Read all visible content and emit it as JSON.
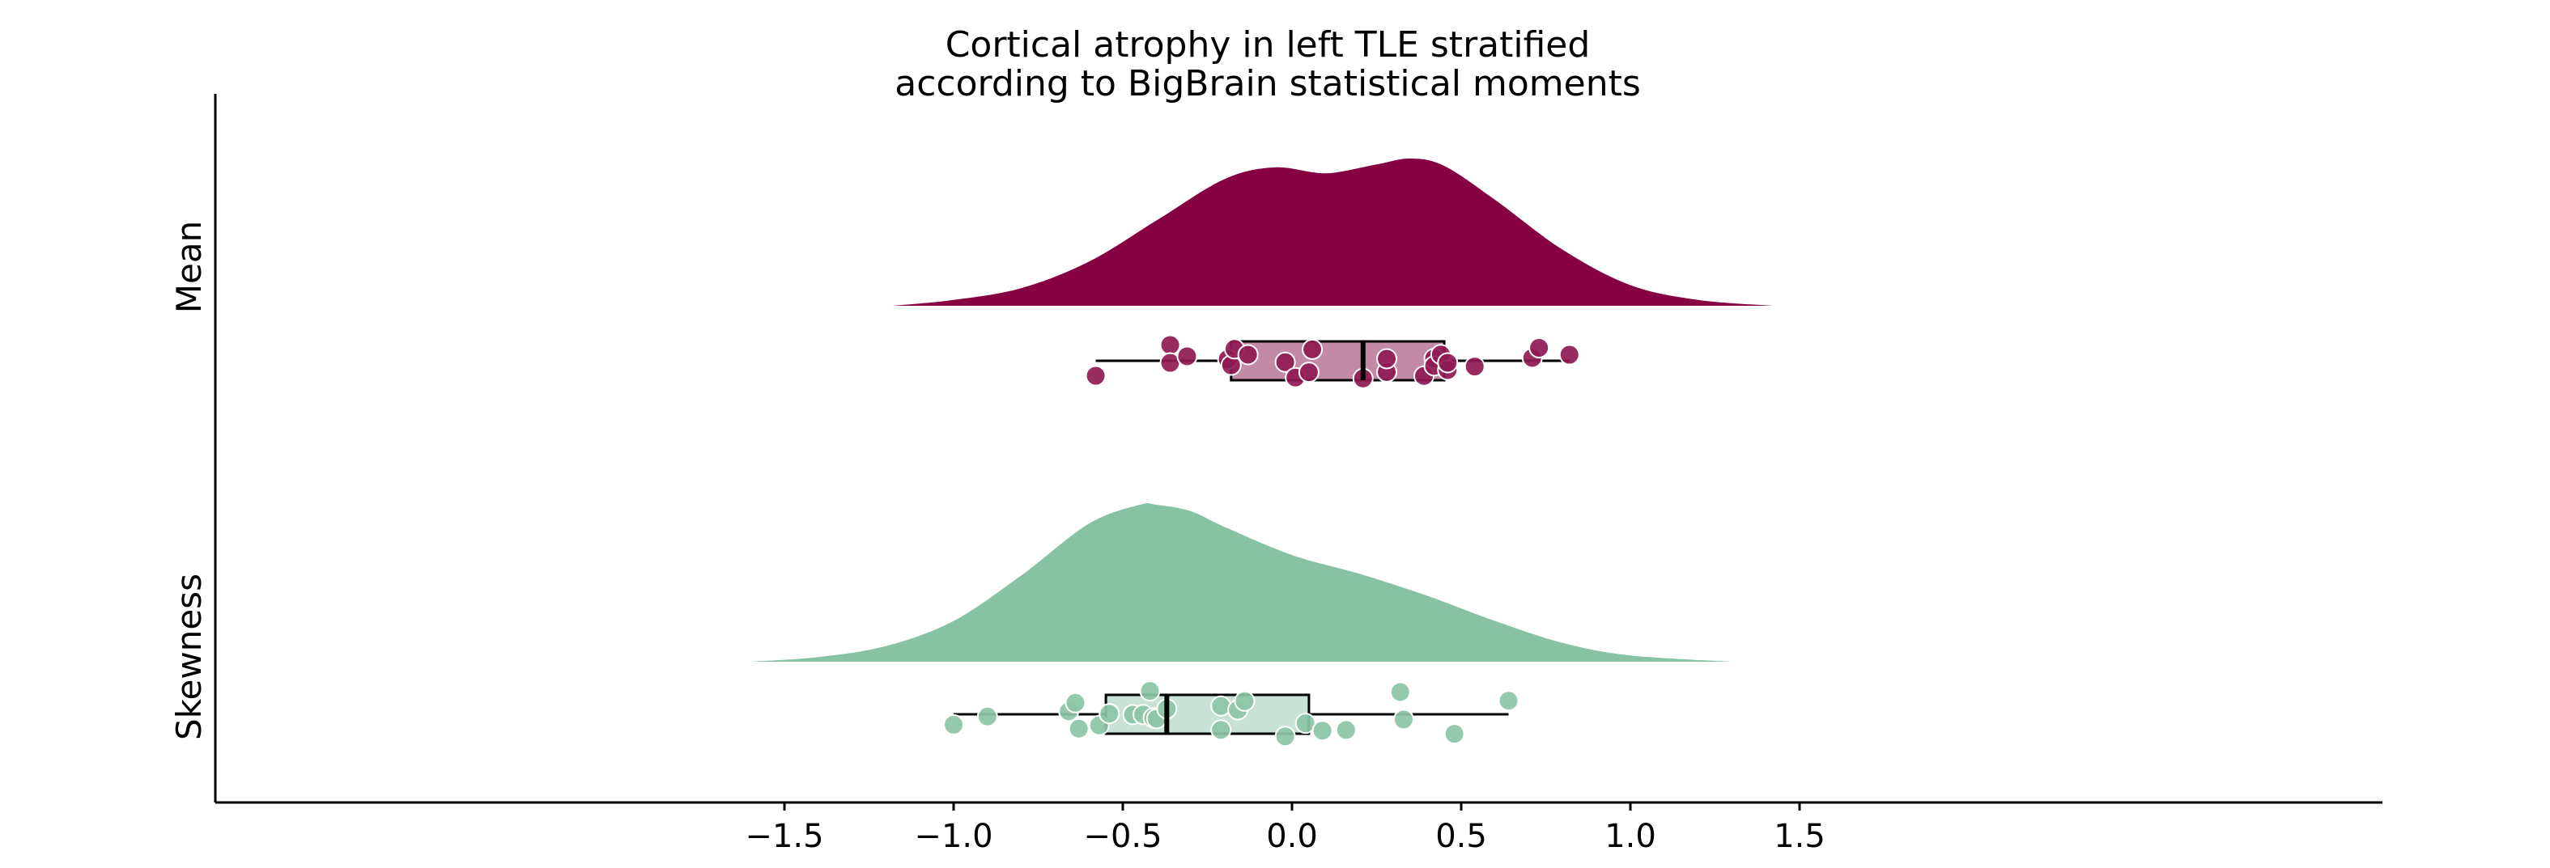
{
  "chart_data": {
    "type": "raincloud",
    "title_lines": [
      "Cortical atrophy in left TLE stratified",
      "according to BigBrain statistical moments"
    ],
    "xlabel": "",
    "ylabel": "",
    "xlim": [
      -1.6,
      1.6
    ],
    "x_ticks": [
      -1.5,
      -1.0,
      -0.5,
      0.0,
      0.5,
      1.0,
      1.5
    ],
    "x_tick_labels": [
      "−1.5",
      "−1.0",
      "−0.5",
      "0.0",
      "0.5",
      "1.0",
      "1.5"
    ],
    "grid": false,
    "series": [
      {
        "name": "Mean",
        "color": "#870042",
        "box_color": "#c38aa6",
        "point_color": "#8f1a52",
        "box": {
          "whisker_low": -0.58,
          "q1": -0.18,
          "median": 0.21,
          "q3": 0.45,
          "whisker_high": 0.82
        },
        "density": {
          "x": [
            -1.18,
            -1.0,
            -0.8,
            -0.6,
            -0.4,
            -0.2,
            -0.05,
            0.1,
            0.25,
            0.35,
            0.45,
            0.6,
            0.8,
            1.0,
            1.2,
            1.42
          ],
          "y": [
            0.0,
            0.04,
            0.12,
            0.3,
            0.58,
            0.86,
            0.94,
            0.9,
            0.96,
            1.0,
            0.95,
            0.72,
            0.38,
            0.14,
            0.04,
            0.0
          ]
        },
        "points": [
          -0.58,
          -0.36,
          -0.36,
          -0.31,
          -0.19,
          -0.18,
          -0.17,
          -0.13,
          -0.02,
          0.01,
          0.05,
          0.06,
          0.21,
          0.28,
          0.28,
          0.39,
          0.42,
          0.42,
          0.44,
          0.46,
          0.46,
          0.54,
          0.71,
          0.73,
          0.82
        ]
      },
      {
        "name": "Skewness",
        "color": "#88c2a5",
        "box_color": "#c8e3d6",
        "point_color": "#8cc4a7",
        "box": {
          "whisker_low": -1.0,
          "q1": -0.55,
          "median": -0.37,
          "q3": 0.05,
          "whisker_high": 0.64
        },
        "density": {
          "x": [
            -1.6,
            -1.4,
            -1.2,
            -1.0,
            -0.8,
            -0.6,
            -0.45,
            -0.4,
            -0.3,
            -0.2,
            0.0,
            0.2,
            0.4,
            0.6,
            0.8,
            1.0,
            1.3
          ],
          "y": [
            0.0,
            0.03,
            0.1,
            0.26,
            0.55,
            0.88,
            1.0,
            1.0,
            0.96,
            0.86,
            0.68,
            0.56,
            0.42,
            0.26,
            0.12,
            0.04,
            0.0
          ]
        },
        "points": [
          -1.0,
          -0.9,
          -0.66,
          -0.64,
          -0.63,
          -0.57,
          -0.54,
          -0.47,
          -0.44,
          -0.42,
          -0.41,
          -0.4,
          -0.37,
          -0.21,
          -0.21,
          -0.16,
          -0.14,
          -0.02,
          0.04,
          0.09,
          0.16,
          0.32,
          0.33,
          0.48,
          0.64
        ]
      }
    ]
  }
}
